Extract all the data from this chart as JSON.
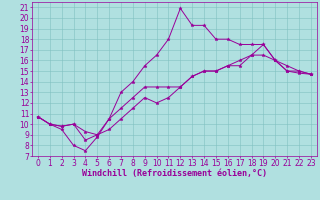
{
  "xlabel": "Windchill (Refroidissement éolien,°C)",
  "xlim": [
    -0.5,
    23.5
  ],
  "ylim": [
    7,
    21.5
  ],
  "xticks": [
    0,
    1,
    2,
    3,
    4,
    5,
    6,
    7,
    8,
    9,
    10,
    11,
    12,
    13,
    14,
    15,
    16,
    17,
    18,
    19,
    20,
    21,
    22,
    23
  ],
  "yticks": [
    7,
    8,
    9,
    10,
    11,
    12,
    13,
    14,
    15,
    16,
    17,
    18,
    19,
    20,
    21
  ],
  "bg_color": "#b0e0e0",
  "grid_color": "#80c0c0",
  "line_color": "#990099",
  "line1_x": [
    0,
    1,
    2,
    3,
    4,
    5,
    6,
    7,
    8,
    9,
    10,
    11,
    12,
    13,
    14,
    15,
    16,
    17,
    18,
    19,
    20,
    21,
    22,
    23
  ],
  "line1_y": [
    10.7,
    10.0,
    9.5,
    8.0,
    7.5,
    8.8,
    10.5,
    13.0,
    14.0,
    15.5,
    16.5,
    18.0,
    20.9,
    19.3,
    19.3,
    18.0,
    18.0,
    17.5,
    17.5,
    17.5,
    16.0,
    15.0,
    14.8,
    14.7
  ],
  "line2_x": [
    0,
    1,
    2,
    3,
    4,
    5,
    6,
    7,
    8,
    9,
    10,
    11,
    12,
    13,
    14,
    15,
    16,
    17,
    18,
    19,
    20,
    21,
    22,
    23
  ],
  "line2_y": [
    10.7,
    10.0,
    9.8,
    10.0,
    9.3,
    9.0,
    9.5,
    10.5,
    11.5,
    12.5,
    12.0,
    12.5,
    13.5,
    14.5,
    15.0,
    15.0,
    15.5,
    16.0,
    16.5,
    16.5,
    16.0,
    15.0,
    15.0,
    14.7
  ],
  "line3_x": [
    0,
    1,
    2,
    3,
    4,
    5,
    6,
    7,
    8,
    9,
    10,
    11,
    12,
    13,
    14,
    15,
    16,
    17,
    18,
    19,
    20,
    21,
    22,
    23
  ],
  "line3_y": [
    10.7,
    10.0,
    9.8,
    10.0,
    8.5,
    9.0,
    10.5,
    11.5,
    12.5,
    13.5,
    13.5,
    13.5,
    13.5,
    14.5,
    15.0,
    15.0,
    15.5,
    15.5,
    16.5,
    17.5,
    16.0,
    15.5,
    15.0,
    14.7
  ],
  "tick_fontsize": 5.5,
  "xlabel_fontsize": 6,
  "lw": 0.7,
  "ms": 2.5
}
